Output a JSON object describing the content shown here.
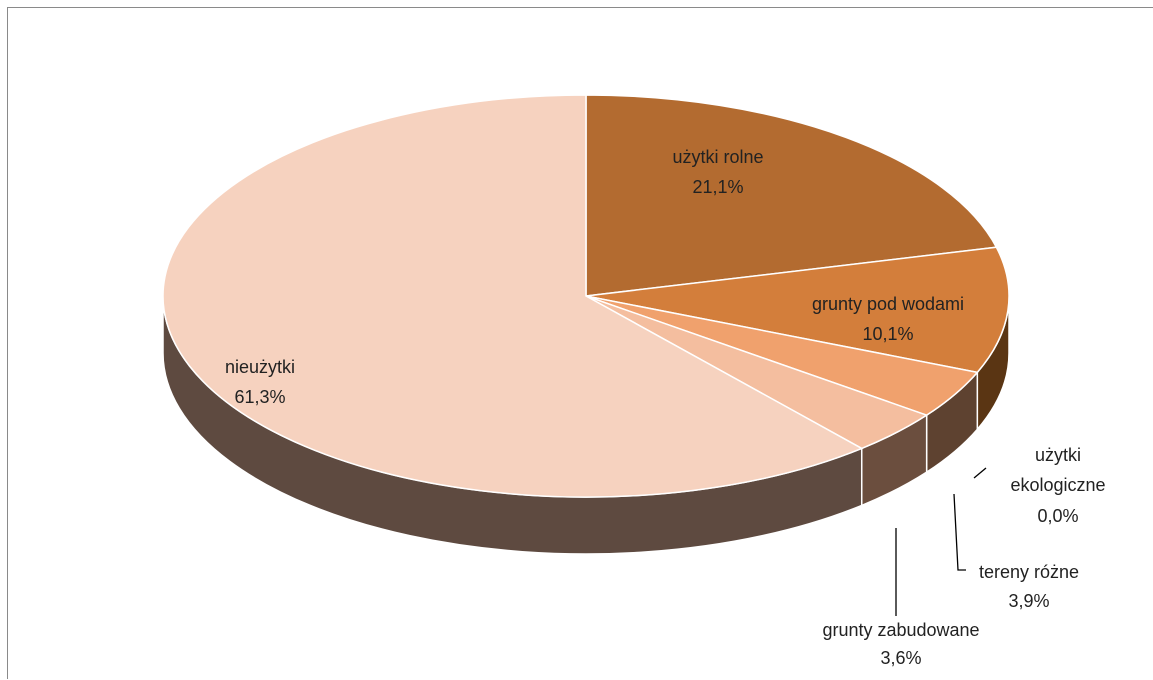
{
  "chart_data": {
    "type": "pie",
    "title": "",
    "style": "3d",
    "slices": [
      {
        "label": "użytki rolne",
        "value": 21.1,
        "value_label": "21,1%",
        "color": "#B36B30"
      },
      {
        "label": "grunty pod wodami",
        "value": 10.1,
        "value_label": "10,1%",
        "color": "#D37E3B"
      },
      {
        "label": "tereny różne",
        "value": 3.9,
        "value_label": "3,9%",
        "color": "#F0A16D"
      },
      {
        "label": "grunty zabudowane",
        "value": 3.6,
        "value_label": "3,6%",
        "color": "#F4BE9F"
      },
      {
        "label": "nieużytki",
        "value": 61.3,
        "value_label": "61,3%",
        "color": "#F6D2BF"
      },
      {
        "label": "użytki ekologiczne",
        "value": 0.0,
        "value_label": "0,0%",
        "color": "#E9B894"
      }
    ],
    "side_colors": [
      "#6F4726",
      "#5A3513",
      "#5E4230",
      "#6B4E3E",
      "#B99A88",
      "#5A3513"
    ]
  }
}
